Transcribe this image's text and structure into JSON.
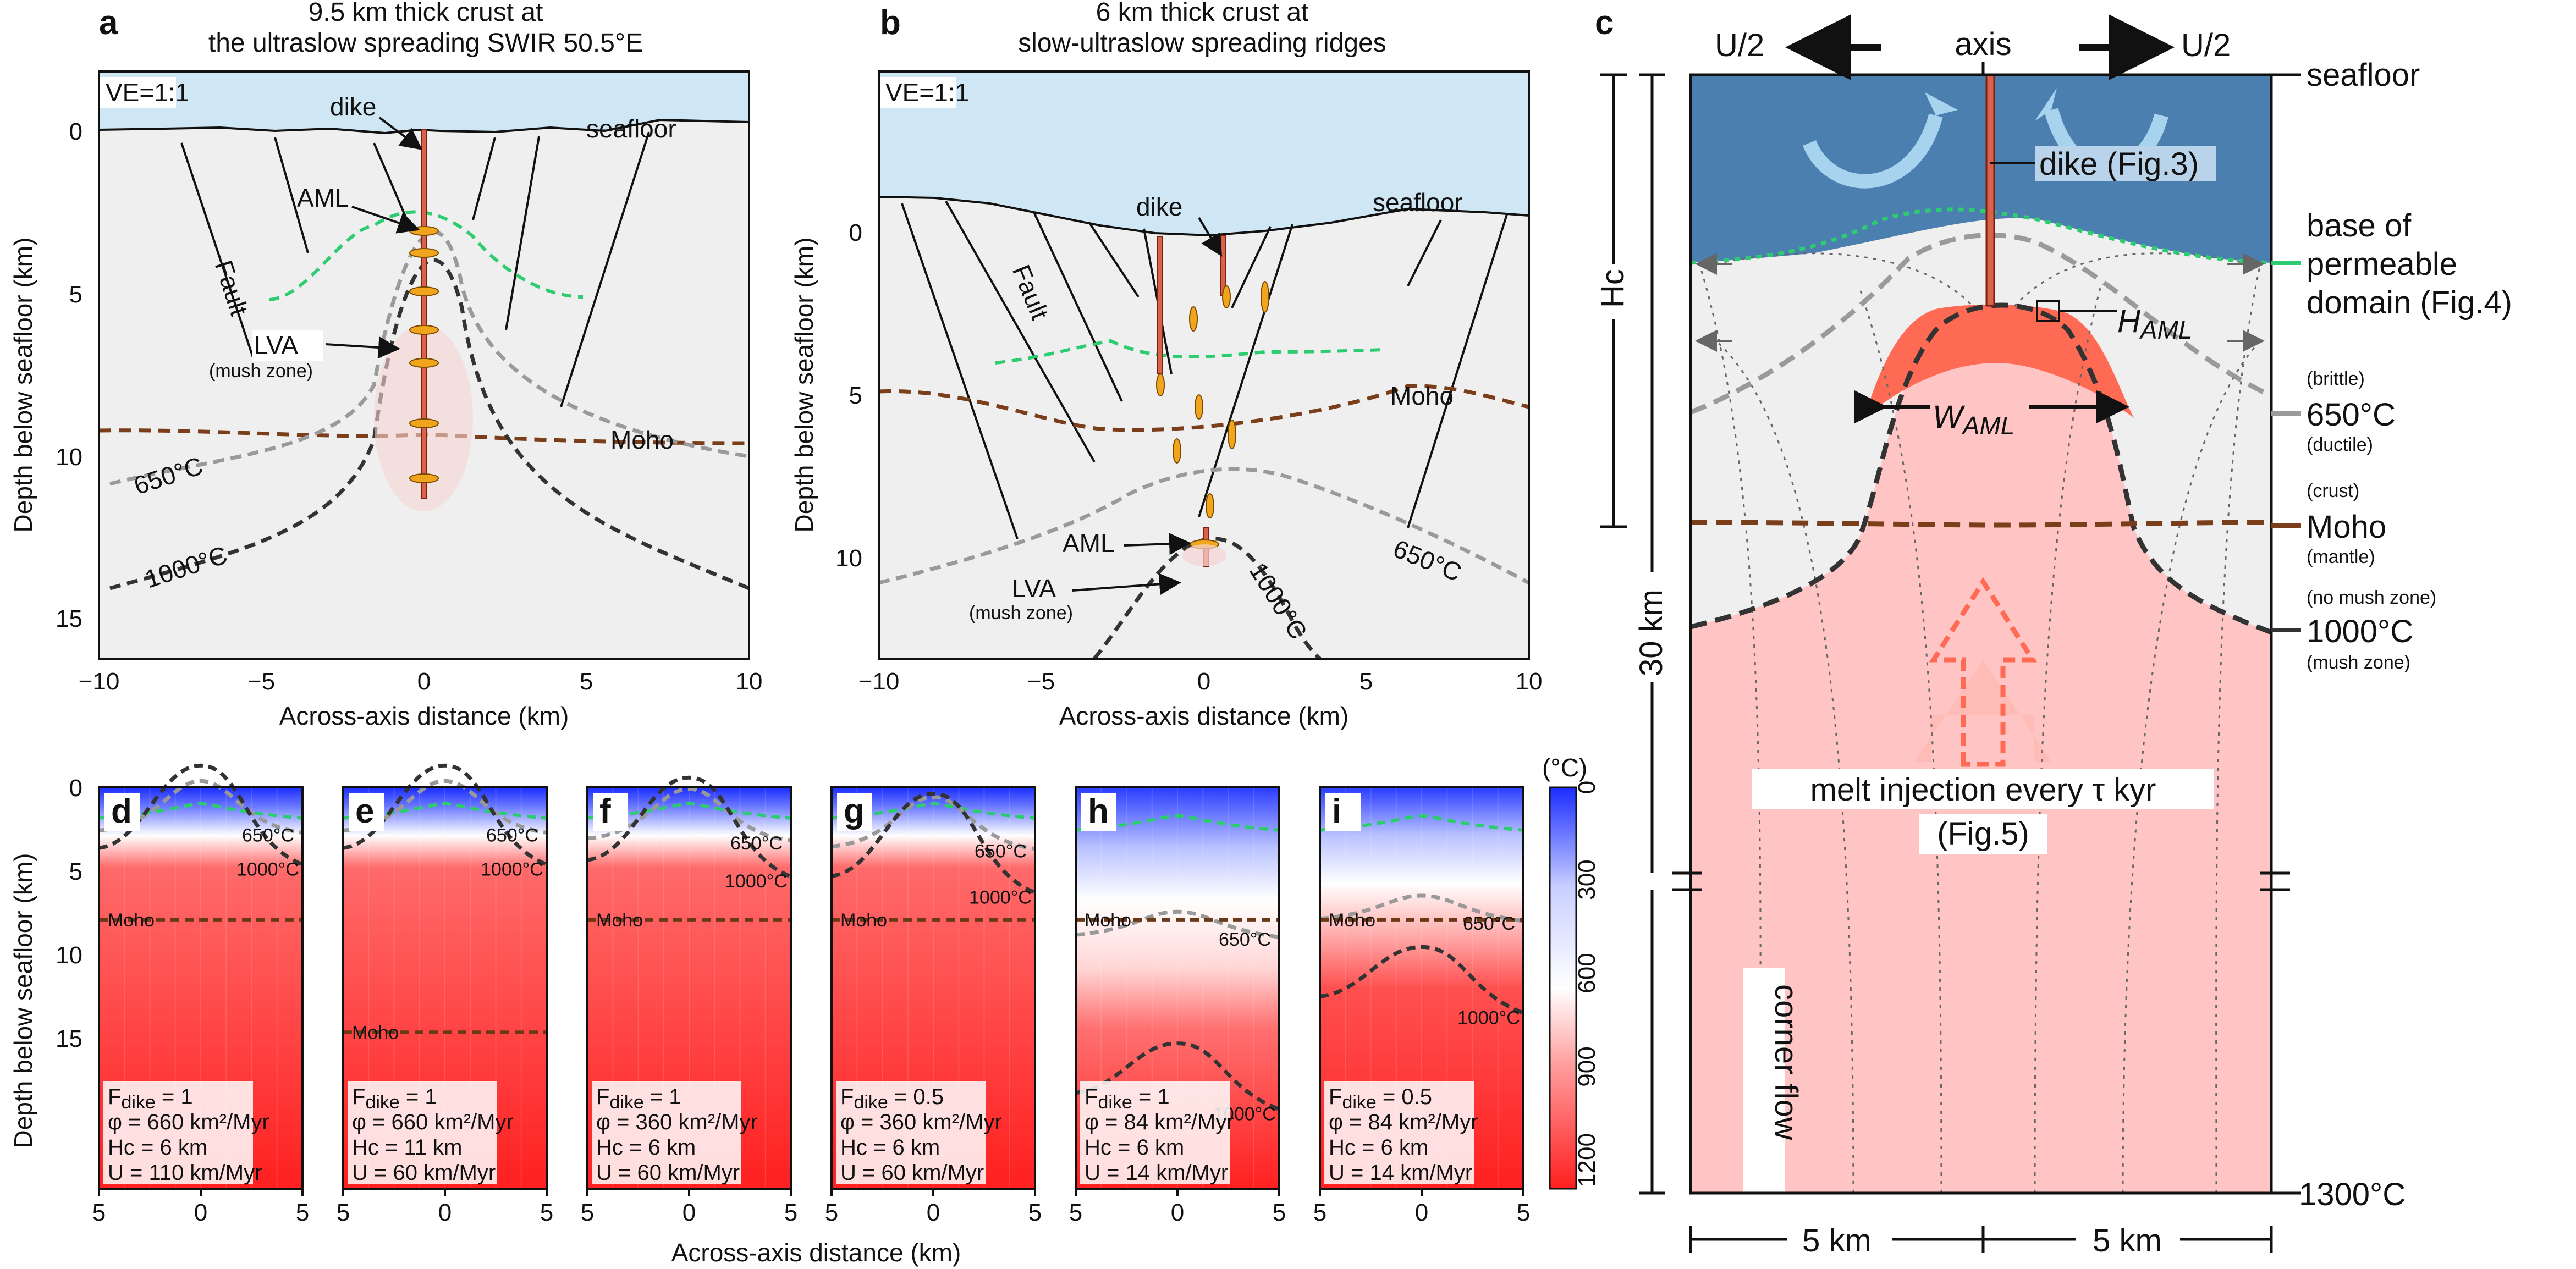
{
  "panels": {
    "a": {
      "letter": "a",
      "title1": "9.5 km thick crust at",
      "title2": "the ultraslow spreading SWIR 50.5°E",
      "ve": "VE=1:1",
      "labels": {
        "dike": "dike",
        "aml": "AML",
        "lva": "LVA",
        "mush": "(mush zone)",
        "fault": "Fault",
        "seafloor": "seafloor",
        "moho": "Moho",
        "iso650": "650°C",
        "iso1000": "1000°C"
      },
      "xlabel": "Across-axis distance (km)",
      "ylabel": "Depth below seafloor (km)",
      "xticks": [
        "−10",
        "−5",
        "0",
        "5",
        "10"
      ],
      "yticks": [
        "0",
        "5",
        "10",
        "15"
      ]
    },
    "b": {
      "letter": "b",
      "title1": "6 km thick crust at",
      "title2": "slow-ultraslow spreading ridges",
      "ve": "VE=1:1",
      "labels": {
        "dike": "dike",
        "aml": "AML",
        "lva": "LVA",
        "mush": "(mush zone)",
        "fault": "Fault",
        "seafloor": "seafloor",
        "moho": "Moho",
        "iso650": "650°C",
        "iso1000": "1000°C"
      },
      "xlabel": "Across-axis distance (km)",
      "ylabel": "Depth below seafloor (km)",
      "xticks": [
        "−10",
        "−5",
        "0",
        "5",
        "10"
      ],
      "yticks": [
        "0",
        "5",
        "10"
      ]
    },
    "c": {
      "letter": "c",
      "axis": "axis",
      "u_left": "U/2",
      "u_right": "U/2",
      "seafloor": "seafloor",
      "dike": "dike (Fig.3)",
      "base1": "base of",
      "base2": "permeable",
      "base3": "domain (Fig.4)",
      "hc": "Hc",
      "haml": "H",
      "haml_sub": "AML",
      "waml": "W",
      "waml_sub": "AML",
      "brittle": "(brittle)",
      "t650": "650°C",
      "ductile": "(ductile)",
      "crust": "(crust)",
      "moho": "Moho",
      "mantle": "(mantle)",
      "nomush": "(no mush zone)",
      "t1000": "1000°C",
      "mush": "(mush zone)",
      "km30": "30 km",
      "melt1": "melt injection every τ kyr",
      "melt2": "(Fig.5)",
      "corner": "corner flow",
      "t1300": "1300°C",
      "left5": "5 km",
      "right5": "5 km"
    },
    "grid": {
      "ylabel": "Depth below seafloor (km)",
      "xlabel": "Across-axis distance (km)",
      "yticks": [
        "0",
        "5",
        "10",
        "15"
      ],
      "xticks": [
        "5",
        "0",
        "5"
      ],
      "colorbar_unit": "(°C)",
      "colorbar_ticks": [
        "0",
        "300",
        "600",
        "900",
        "1200"
      ],
      "panels": [
        {
          "letter": "d",
          "fdike": "1",
          "phi": "φ = 660 km²/Myr",
          "hc": "Hc = 6 km",
          "u": "U = 110 km/Myr",
          "moho": "Moho",
          "i650": "650°C",
          "i1000": "1000°C"
        },
        {
          "letter": "e",
          "fdike": "1",
          "phi": "φ = 660 km²/Myr",
          "hc": "Hc = 11 km",
          "u": "U = 60 km/Myr",
          "moho": "Moho",
          "i650": "650°C",
          "i1000": "1000°C"
        },
        {
          "letter": "f",
          "fdike": "1",
          "phi": "φ = 360 km²/Myr",
          "hc": "Hc = 6 km",
          "u": "U = 60 km/Myr",
          "moho": "Moho",
          "i650": "650°C",
          "i1000": "1000°C"
        },
        {
          "letter": "g",
          "fdike": "0.5",
          "phi": "φ = 360 km²/Myr",
          "hc": "Hc = 6 km",
          "u": "U = 60 km/Myr",
          "moho": "Moho",
          "i650": "650°C",
          "i1000": "1000°C"
        },
        {
          "letter": "h",
          "fdike": "1",
          "phi": "φ = 84 km²/Myr",
          "hc": "Hc = 6 km",
          "u": "U = 14 km/Myr",
          "moho": "Moho",
          "i650": "650°C",
          "i1000": "1000°C"
        },
        {
          "letter": "i",
          "fdike": "0.5",
          "phi": "φ = 84 km²/Myr",
          "hc": "Hc = 6 km",
          "u": "U = 14 km/Myr",
          "moho": "Moho",
          "i650": "650°C",
          "i1000": "1000°C"
        }
      ]
    },
    "fdike_label": "F",
    "fdike_sub": "dike"
  },
  "colors": {
    "water": "#cfe7f4",
    "crust": "#efefef",
    "moho": "#7a3e1a",
    "iso650": "#9a9a9a",
    "iso1000": "#333333",
    "perm": "#2ecc71",
    "dike": "#d9624a",
    "aml": "#f1a51c",
    "hot": "#ff2a2a",
    "cold": "#1a2cff",
    "blue_domain": "#4a7fb0",
    "pink": "#ffc4c4",
    "aml_c": "#ff6a55"
  }
}
